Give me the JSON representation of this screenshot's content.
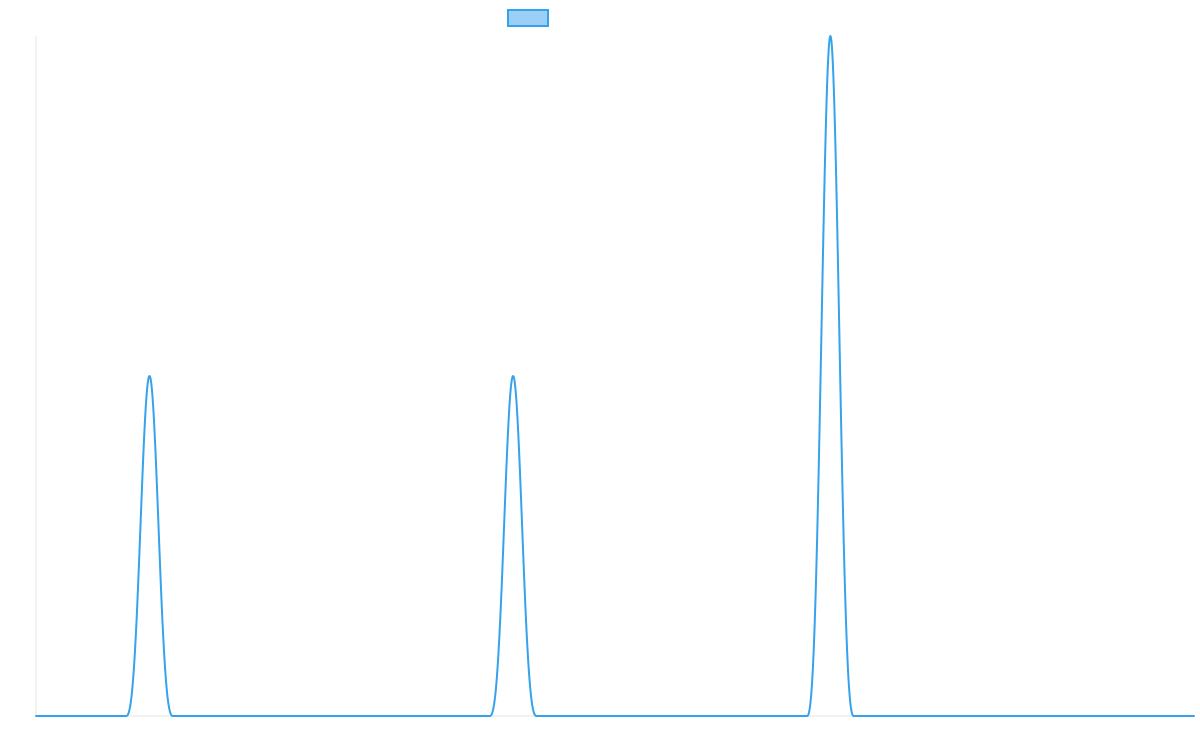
{
  "colors": {
    "series_stroke": "#36a2eb",
    "series_fill": "#9ad0f5",
    "axis": "#e6e6e6",
    "background": "#ffffff"
  },
  "chart_data": {
    "type": "line",
    "title": "",
    "xlabel": "",
    "ylabel": "",
    "grid": false,
    "legend": {
      "placement": "top-center",
      "entries": [
        {
          "label": ""
        }
      ]
    },
    "xlim": [
      0,
      1000
    ],
    "ylim": [
      0,
      2
    ],
    "series": [
      {
        "values_shape": "gaussian-peaks",
        "baseline": 0,
        "peaks": [
          {
            "center": 98,
            "height": 1.0,
            "half_width": 20
          },
          {
            "center": 412,
            "height": 1.0,
            "half_width": 20
          },
          {
            "center": 686,
            "height": 2.0,
            "half_width": 20
          }
        ]
      }
    ]
  }
}
